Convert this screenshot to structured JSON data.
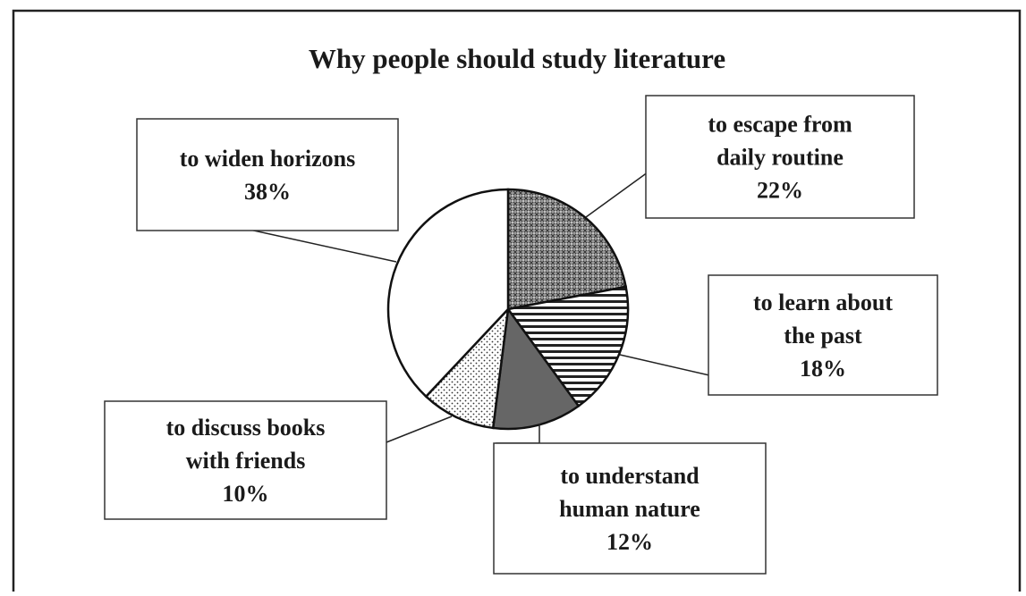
{
  "chart_data": {
    "type": "pie",
    "title": "Why people should study literature",
    "slices": [
      {
        "lines": [
          "to escape from",
          "daily routine"
        ],
        "value": 22,
        "value_label": "22%",
        "pattern": "crosshatch"
      },
      {
        "lines": [
          "to learn about",
          "the past"
        ],
        "value": 18,
        "value_label": "18%",
        "pattern": "horizontal-lines"
      },
      {
        "lines": [
          "to understand",
          "human nature"
        ],
        "value": 12,
        "value_label": "12%",
        "pattern": "dark-gray"
      },
      {
        "lines": [
          "to discuss books",
          "with friends"
        ],
        "value": 10,
        "value_label": "10%",
        "pattern": "dots"
      },
      {
        "lines": [
          "to widen horizons"
        ],
        "value": 38,
        "value_label": "38%",
        "pattern": "white"
      }
    ]
  }
}
